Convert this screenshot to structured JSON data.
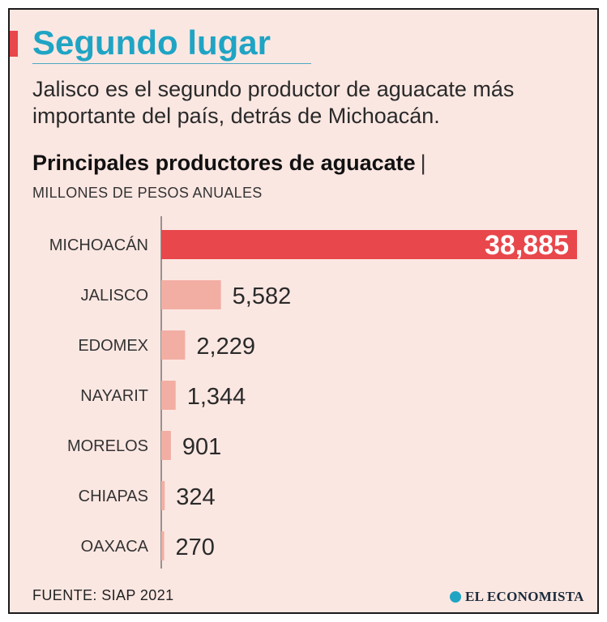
{
  "header": {
    "title": "Segundo lugar",
    "subtitle": "Jalisco es el segundo productor de aguacate más importante del país, detrás de Michoacán."
  },
  "colors": {
    "highlight_bar": "#e8474b",
    "regular_bar": "#f2aea3",
    "title": "#1fa4c4",
    "background": "#fbe7e2"
  },
  "chart_data": {
    "type": "bar",
    "orientation": "horizontal",
    "title": "Principales productores de aguacate",
    "title_separator": "|",
    "subtitle": "MILLONES DE PESOS ANUALES",
    "categories": [
      "MICHOACÁN",
      "JALISCO",
      "EDOMEX",
      "NAYARIT",
      "MORELOS",
      "CHIAPAS",
      "OAXACA"
    ],
    "values": [
      38885,
      5582,
      2229,
      1344,
      901,
      324,
      270
    ],
    "value_labels": [
      "38,885",
      "5,582",
      "2,229",
      "1,344",
      "901",
      "324",
      "270"
    ],
    "highlight_index": 0,
    "xlim": [
      0,
      38885
    ],
    "grid": false,
    "legend": "none"
  },
  "footer": {
    "source": "FUENTE: SIAP 2021",
    "logo_text": "EL ECONOMISTA",
    "logo_icon": "globe-icon"
  }
}
